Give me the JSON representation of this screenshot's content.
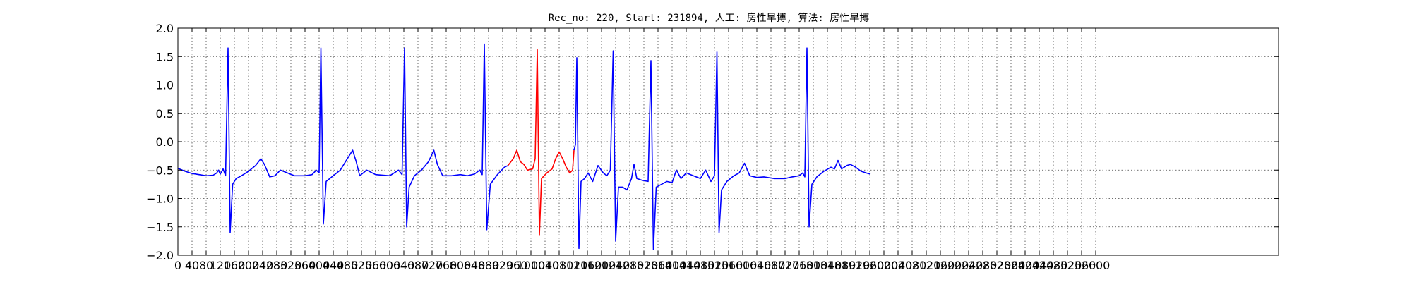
{
  "chart_data": {
    "type": "line",
    "title": "Rec_no: 220, Start: 231894, 人工: 房性早搏, 算法: 房性早搏",
    "xlabel": "",
    "ylabel": "",
    "xlim": [
      0,
      4000
    ],
    "ylim": [
      -2.0,
      2.0
    ],
    "grid": true,
    "yticks": [
      2.0,
      1.5,
      1.0,
      0.5,
      0.0,
      -0.5,
      -1.0,
      -1.5,
      -2.0
    ],
    "ytick_labels": [
      "2.0",
      "1.5",
      "1.0",
      "0.5",
      "0.0",
      "−0.5",
      "−1.0",
      "−1.5",
      "−2.0"
    ],
    "xtick_labels": [
      "0",
      "40",
      "80",
      "120",
      "160",
      "200",
      "240",
      "280",
      "320",
      "360",
      "400",
      "440",
      "480",
      "520",
      "560",
      "600",
      "640",
      "680",
      "720",
      "760",
      "800",
      "840",
      "880",
      "920",
      "960",
      "1000",
      "1040",
      "1080",
      "1120",
      "1160",
      "1200",
      "1240",
      "1280",
      "1320",
      "1360",
      "1400",
      "1440",
      "1480",
      "1520",
      "1560",
      "1600",
      "1640",
      "1680",
      "1720",
      "1760",
      "1800",
      "1840",
      "1880",
      "1920",
      "1960",
      "2000",
      "2040",
      "2080",
      "2120",
      "2160",
      "2200",
      "2240",
      "2280",
      "2320",
      "2360",
      "2400",
      "2440",
      "2480",
      "2520",
      "2560",
      "2600"
    ],
    "xtick_step": 40,
    "colors": {
      "normal": "#0000ff",
      "highlight": "#ff0000"
    },
    "series": [
      {
        "color": "#0000ff",
        "points": [
          [
            0,
            -0.47
          ],
          [
            20,
            -0.52
          ],
          [
            40,
            -0.56
          ],
          [
            60,
            -0.58
          ],
          [
            80,
            -0.6
          ],
          [
            100,
            -0.59
          ],
          [
            110,
            -0.55
          ],
          [
            115,
            -0.5
          ],
          [
            120,
            -0.57
          ],
          [
            128,
            -0.48
          ],
          [
            135,
            -0.6
          ],
          [
            142,
            1.65
          ],
          [
            148,
            -1.6
          ],
          [
            155,
            -0.75
          ],
          [
            165,
            -0.65
          ],
          [
            180,
            -0.6
          ],
          [
            200,
            -0.52
          ],
          [
            220,
            -0.42
          ],
          [
            235,
            -0.3
          ],
          [
            245,
            -0.4
          ],
          [
            260,
            -0.62
          ],
          [
            275,
            -0.6
          ],
          [
            290,
            -0.5
          ],
          [
            310,
            -0.55
          ],
          [
            330,
            -0.6
          ],
          [
            360,
            -0.6
          ],
          [
            380,
            -0.58
          ],
          [
            392,
            -0.5
          ],
          [
            400,
            -0.55
          ],
          [
            405,
            1.65
          ],
          [
            412,
            -1.45
          ],
          [
            420,
            -0.7
          ],
          [
            440,
            -0.6
          ],
          [
            460,
            -0.5
          ],
          [
            480,
            -0.3
          ],
          [
            495,
            -0.15
          ],
          [
            505,
            -0.35
          ],
          [
            515,
            -0.6
          ],
          [
            535,
            -0.5
          ],
          [
            560,
            -0.58
          ],
          [
            600,
            -0.6
          ],
          [
            625,
            -0.5
          ],
          [
            635,
            -0.58
          ],
          [
            642,
            1.65
          ],
          [
            648,
            -1.5
          ],
          [
            655,
            -0.8
          ],
          [
            670,
            -0.6
          ],
          [
            690,
            -0.5
          ],
          [
            710,
            -0.35
          ],
          [
            725,
            -0.15
          ],
          [
            735,
            -0.4
          ],
          [
            750,
            -0.6
          ],
          [
            775,
            -0.6
          ],
          [
            800,
            -0.58
          ],
          [
            820,
            -0.6
          ],
          [
            840,
            -0.57
          ],
          [
            855,
            -0.5
          ],
          [
            862,
            -0.58
          ],
          [
            868,
            1.72
          ],
          [
            875,
            -1.55
          ],
          [
            885,
            -0.75
          ],
          [
            905,
            -0.58
          ],
          [
            925,
            -0.45
          ],
          [
            935,
            -0.42
          ]
        ]
      },
      {
        "color": "#ff0000",
        "points": [
          [
            935,
            -0.42
          ],
          [
            950,
            -0.3
          ],
          [
            960,
            -0.15
          ],
          [
            970,
            -0.35
          ],
          [
            980,
            -0.4
          ],
          [
            990,
            -0.5
          ],
          [
            1005,
            -0.48
          ],
          [
            1012,
            -0.3
          ],
          [
            1018,
            1.62
          ],
          [
            1024,
            -1.65
          ],
          [
            1030,
            -0.65
          ],
          [
            1045,
            -0.55
          ],
          [
            1060,
            -0.48
          ],
          [
            1070,
            -0.3
          ],
          [
            1080,
            -0.18
          ],
          [
            1090,
            -0.3
          ],
          [
            1100,
            -0.45
          ],
          [
            1110,
            -0.55
          ],
          [
            1118,
            -0.5
          ],
          [
            1122,
            -0.15
          ]
        ]
      },
      {
        "color": "#0000ff",
        "points": [
          [
            1122,
            -0.15
          ],
          [
            1126,
            -0.05
          ],
          [
            1130,
            1.48
          ],
          [
            1136,
            -1.88
          ],
          [
            1142,
            -0.7
          ],
          [
            1152,
            -0.65
          ],
          [
            1162,
            -0.55
          ],
          [
            1175,
            -0.7
          ],
          [
            1190,
            -0.42
          ],
          [
            1205,
            -0.55
          ],
          [
            1215,
            -0.6
          ],
          [
            1225,
            -0.5
          ],
          [
            1233,
            1.6
          ],
          [
            1240,
            -1.75
          ],
          [
            1248,
            -0.8
          ],
          [
            1260,
            -0.8
          ],
          [
            1272,
            -0.85
          ],
          [
            1285,
            -0.65
          ],
          [
            1292,
            -0.4
          ],
          [
            1300,
            -0.65
          ],
          [
            1315,
            -0.68
          ],
          [
            1332,
            -0.7
          ],
          [
            1340,
            1.43
          ],
          [
            1347,
            -1.9
          ],
          [
            1355,
            -0.8
          ],
          [
            1370,
            -0.75
          ],
          [
            1385,
            -0.7
          ],
          [
            1400,
            -0.72
          ],
          [
            1412,
            -0.5
          ],
          [
            1425,
            -0.65
          ],
          [
            1440,
            -0.55
          ],
          [
            1460,
            -0.6
          ],
          [
            1480,
            -0.65
          ],
          [
            1495,
            -0.5
          ],
          [
            1510,
            -0.7
          ],
          [
            1520,
            -0.6
          ],
          [
            1527,
            1.58
          ],
          [
            1533,
            -1.6
          ],
          [
            1540,
            -0.85
          ],
          [
            1555,
            -0.7
          ],
          [
            1575,
            -0.6
          ],
          [
            1590,
            -0.55
          ],
          [
            1605,
            -0.38
          ],
          [
            1620,
            -0.6
          ],
          [
            1640,
            -0.63
          ],
          [
            1660,
            -0.62
          ],
          [
            1690,
            -0.65
          ],
          [
            1720,
            -0.65
          ],
          [
            1740,
            -0.62
          ],
          [
            1760,
            -0.6
          ],
          [
            1770,
            -0.55
          ],
          [
            1776,
            -0.62
          ],
          [
            1782,
            1.65
          ],
          [
            1788,
            -1.5
          ],
          [
            1796,
            -0.75
          ],
          [
            1810,
            -0.62
          ],
          [
            1830,
            -0.52
          ],
          [
            1850,
            -0.45
          ],
          [
            1860,
            -0.48
          ],
          [
            1870,
            -0.33
          ],
          [
            1880,
            -0.48
          ],
          [
            1895,
            -0.42
          ],
          [
            1905,
            -0.4
          ],
          [
            1920,
            -0.45
          ],
          [
            1935,
            -0.52
          ],
          [
            1955,
            -0.56
          ],
          [
            1962,
            -0.57
          ]
        ]
      }
    ]
  }
}
